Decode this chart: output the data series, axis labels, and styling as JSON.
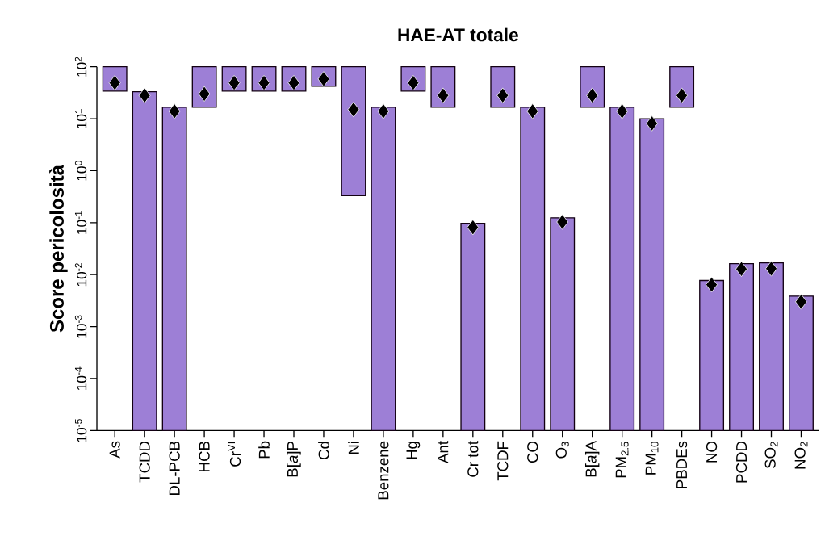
{
  "chart_data": {
    "type": "bar",
    "title": "HAE-AT  totale",
    "ylabel": "Score pericolosità",
    "log": true,
    "grid": false,
    "categories": [
      "As",
      "TCDD",
      "DL-PCB",
      "HCB",
      "Cr$^{VI}$",
      "Pb",
      "B[*a*]P",
      "Cd",
      "Ni",
      "Benzene",
      "Hg",
      "Ant",
      "Cr tot",
      "TCDF",
      "CO",
      "O$_{3}$",
      "B[*a*]A",
      "PM$_{2.5}$",
      "PM$_{10}$",
      "PBDEs",
      "NO",
      "PCDD",
      "SO$_{2}$",
      "NO$_{2}$"
    ],
    "ylim": [
      1e-05,
      100
    ],
    "yticks": [
      {
        "value": 1e-05,
        "label": "10$^{-5}$"
      },
      {
        "value": 0.0001,
        "label": "10$^{-4}$"
      },
      {
        "value": 0.001,
        "label": "10$^{-3}$"
      },
      {
        "value": 0.01,
        "label": "10$^{-2}$"
      },
      {
        "value": 0.1,
        "label": "10$^{-1}$"
      },
      {
        "value": 1,
        "label": "10$^{0}$"
      },
      {
        "value": 10,
        "label": "10$^{1}$"
      },
      {
        "value": 100,
        "label": "10$^{2}$"
      }
    ],
    "series": [
      {
        "color": "#9d7fd6",
        "base": [
          34,
          1e-05,
          1e-05,
          16.6,
          34,
          34,
          34,
          42,
          0.33,
          1e-05,
          34,
          16.6,
          1e-05,
          16.6,
          1e-05,
          1e-05,
          16.6,
          1e-05,
          1e-05,
          16.6,
          1e-05,
          1e-05,
          1e-05,
          1e-05
        ],
        "values": [
          66,
          33,
          16.6,
          83.4,
          66,
          66,
          66,
          58,
          99.67,
          16.6,
          66,
          83.4,
          0.097,
          83.4,
          16.6,
          0.124,
          83.4,
          16.6,
          10,
          83.4,
          0.0077,
          0.0162,
          0.0168,
          0.00385
        ]
      },
      {
        "type": "scatter",
        "color": "#000000",
        "marker": "diamond",
        "values": [
          49,
          28,
          13.9,
          30,
          49,
          49,
          49,
          58,
          15,
          13.9,
          49,
          28,
          0.081,
          28,
          13.9,
          0.103,
          28,
          13.9,
          8.1,
          28,
          0.0064,
          0.0128,
          0.013,
          0.003
        ]
      }
    ]
  }
}
